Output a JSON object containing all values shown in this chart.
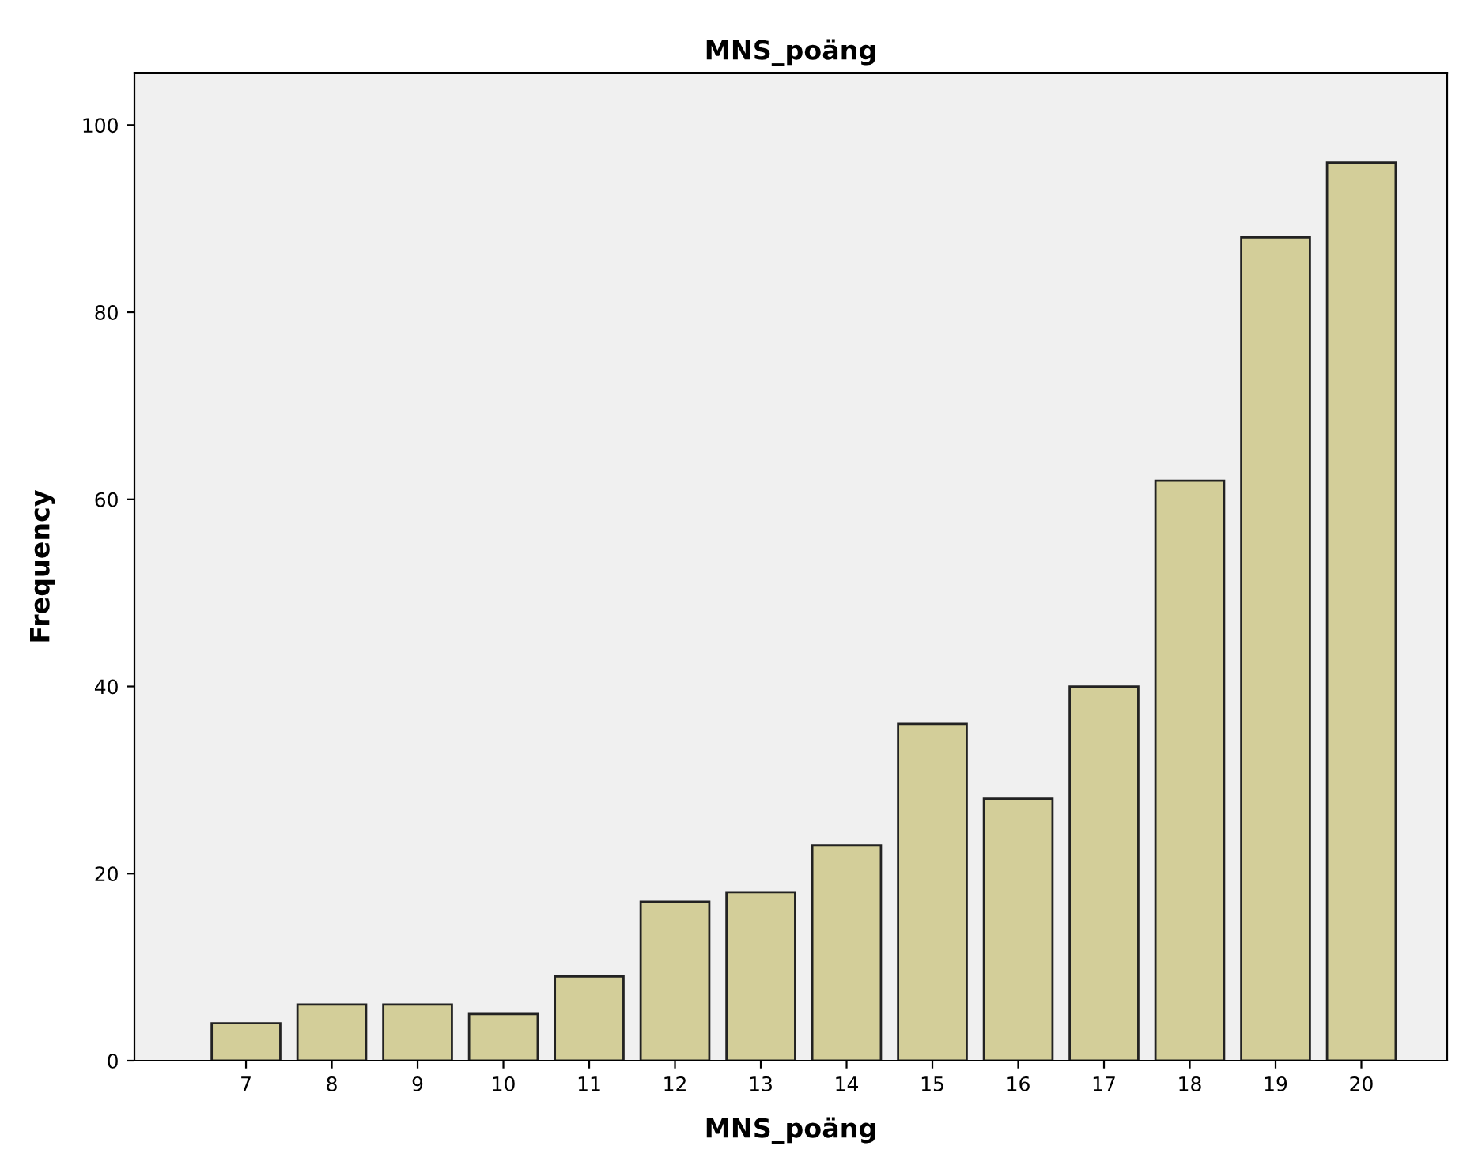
{
  "chart_data": {
    "type": "bar",
    "title": "MNS_poäng",
    "xlabel": "MNS_poäng",
    "ylabel": "Frequency",
    "categories": [
      "7",
      "8",
      "9",
      "10",
      "11",
      "12",
      "13",
      "14",
      "15",
      "16",
      "17",
      "18",
      "19",
      "20"
    ],
    "values": [
      4,
      6,
      6,
      5,
      9,
      17,
      18,
      23,
      36,
      28,
      40,
      62,
      88,
      96
    ],
    "color": "#d3ce99",
    "ylim": [
      0,
      105.6
    ],
    "yticks": [
      0,
      20,
      40,
      60,
      80,
      100
    ],
    "grid": false,
    "legend": false
  }
}
